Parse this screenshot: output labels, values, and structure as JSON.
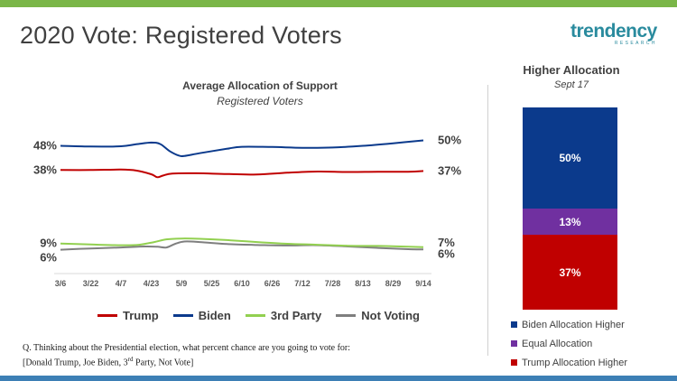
{
  "page": {
    "title": "2020 Vote: Registered Voters",
    "logo_main": "trendency",
    "logo_sub": "RESEARCH"
  },
  "question": {
    "line1": "Q. Thinking about the Presidential election, what percent chance are you going to vote for:",
    "line2_pre": "[Donald Trump, Joe Biden, 3",
    "line2_sup": "rd",
    "line2_post": " Party, Not Vote]"
  },
  "colors": {
    "trump": "#c00000",
    "biden": "#0b3a8c",
    "third": "#92d050",
    "notvoting": "#7f7f7f",
    "equal": "#7030a0",
    "top_bar": "#7ab648",
    "bottom_bar": "#3d7fb5"
  },
  "chart_data": [
    {
      "type": "line",
      "title": "Average Allocation of Support",
      "subtitle": "Registered Voters",
      "categories": [
        "3/6",
        "3/22",
        "4/7",
        "4/23",
        "5/9",
        "5/25",
        "6/10",
        "6/26",
        "7/12",
        "7/28",
        "8/13",
        "8/29",
        "9/14"
      ],
      "ylim": [
        0,
        60
      ],
      "grid": false,
      "legend": "bottom",
      "series": [
        {
          "name": "Trump",
          "color": "#c00000",
          "start_label": "38%",
          "end_label": "37%",
          "points": [
            [
              0,
              38.2
            ],
            [
              1,
              38.2
            ],
            [
              2,
              38.4
            ],
            [
              2.5,
              38.0
            ],
            [
              3.0,
              36.5
            ],
            [
              3.2,
              35.3
            ],
            [
              3.4,
              36.0
            ],
            [
              3.7,
              36.8
            ],
            [
              4.5,
              36.9
            ],
            [
              5.5,
              36.6
            ],
            [
              6.5,
              36.4
            ],
            [
              7.5,
              37.1
            ],
            [
              8.5,
              37.6
            ],
            [
              9.5,
              37.4
            ],
            [
              10.5,
              37.5
            ],
            [
              11.5,
              37.5
            ],
            [
              12,
              37.8
            ]
          ]
        },
        {
          "name": "Biden",
          "color": "#0b3a8c",
          "start_label": "48%",
          "end_label": "50%",
          "points": [
            [
              0,
              48.0
            ],
            [
              1,
              47.7
            ],
            [
              2,
              47.8
            ],
            [
              2.5,
              48.6
            ],
            [
              3.0,
              49.3
            ],
            [
              3.3,
              48.7
            ],
            [
              3.6,
              45.9
            ],
            [
              3.9,
              44.1
            ],
            [
              4.1,
              43.9
            ],
            [
              4.6,
              45.0
            ],
            [
              5.5,
              46.8
            ],
            [
              6,
              47.6
            ],
            [
              7,
              47.5
            ],
            [
              8,
              47.2
            ],
            [
              9,
              47.3
            ],
            [
              10,
              48.0
            ],
            [
              11,
              49.0
            ],
            [
              12,
              50.2
            ]
          ]
        },
        {
          "name": "3rd Party",
          "color": "#92d050",
          "start_label": "9%",
          "end_label": "7%",
          "points": [
            [
              0,
              8.5
            ],
            [
              1,
              8.1
            ],
            [
              2,
              7.8
            ],
            [
              2.6,
              8.0
            ],
            [
              3.1,
              9.1
            ],
            [
              3.5,
              10.2
            ],
            [
              4,
              10.5
            ],
            [
              4.6,
              10.4
            ],
            [
              5.5,
              9.9
            ],
            [
              6.5,
              9.1
            ],
            [
              7.5,
              8.4
            ],
            [
              8.5,
              8.0
            ],
            [
              9.5,
              7.6
            ],
            [
              10.5,
              7.5
            ],
            [
              11.5,
              7.2
            ],
            [
              12,
              7.0
            ]
          ]
        },
        {
          "name": "Not Voting",
          "color": "#7f7f7f",
          "start_label": "6%",
          "end_label": "6%",
          "points": [
            [
              0,
              6.0
            ],
            [
              1,
              6.5
            ],
            [
              2,
              6.9
            ],
            [
              2.8,
              7.3
            ],
            [
              3.2,
              7.2
            ],
            [
              3.5,
              6.9
            ],
            [
              3.8,
              8.4
            ],
            [
              4.1,
              9.3
            ],
            [
              4.6,
              9.1
            ],
            [
              5.5,
              8.3
            ],
            [
              6.5,
              7.9
            ],
            [
              7.5,
              7.7
            ],
            [
              8.5,
              7.8
            ],
            [
              9.5,
              7.3
            ],
            [
              10.5,
              6.7
            ],
            [
              11.5,
              6.2
            ],
            [
              12,
              6.1
            ]
          ]
        }
      ]
    },
    {
      "type": "bar",
      "stacked": true,
      "title": "Higher Allocation",
      "subtitle": "Sept 17",
      "legend": "bottom",
      "series": [
        {
          "name": "Biden Allocation Higher",
          "value": 50,
          "label": "50%",
          "color": "#0b3a8c"
        },
        {
          "name": "Equal Allocation",
          "value": 13,
          "label": "13%",
          "color": "#7030a0"
        },
        {
          "name": "Trump Allocation Higher",
          "value": 37,
          "label": "37%",
          "color": "#c00000"
        }
      ]
    }
  ]
}
